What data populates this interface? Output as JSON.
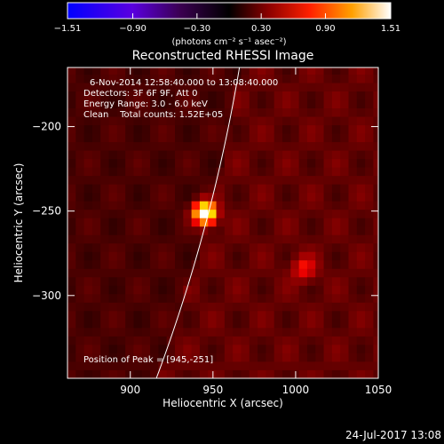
{
  "chart_data": {
    "type": "heatmap",
    "title": "Reconstructed RHESSI Image",
    "xlabel": "Heliocentric X (arcsec)",
    "ylabel": "Heliocentric Y (arcsec)",
    "xlim": [
      862,
      1050
    ],
    "ylim": [
      -349,
      -165
    ],
    "x_ticks": [
      900,
      950,
      1000,
      1050
    ],
    "y_ticks": [
      -200,
      -250,
      -300
    ],
    "x_tick_labels": [
      "900",
      "950",
      "1000",
      "1050"
    ],
    "y_tick_labels": [
      "−200",
      "−250",
      "−300"
    ],
    "colorbar": {
      "min": -1.51,
      "max": 1.51,
      "ticks": [
        -1.51,
        -0.9,
        -0.3,
        0.3,
        0.9,
        1.51
      ],
      "tick_labels": [
        "−1.51",
        "−0.90",
        "−0.30",
        "0.30",
        "0.90",
        "1.51"
      ],
      "units": "(photons cm⁻² s⁻¹ asec⁻²)"
    },
    "annotations": [
      "6-Nov-2014 12:58:40.000 to 13:08:40.000",
      "Detectors: 3F 6F 9F, Att 0",
      "Energy Range: 3.0 - 6.0 keV",
      "Clean    Total counts: 1.52E+05"
    ],
    "peak_label": "Position of Peak = [945,-251]",
    "sources": [
      {
        "x": 945,
        "y": -251,
        "peak": 1.51,
        "sigma_arcsec": 4.5
      },
      {
        "x": 1005,
        "y": -284,
        "peak": 0.35,
        "sigma_arcsec": 5
      }
    ],
    "background_level": 0.3,
    "limb": {
      "cx": 0,
      "cy": 0,
      "r": 980
    }
  },
  "footer": {
    "date": "24-Jul-2017 13:08"
  }
}
